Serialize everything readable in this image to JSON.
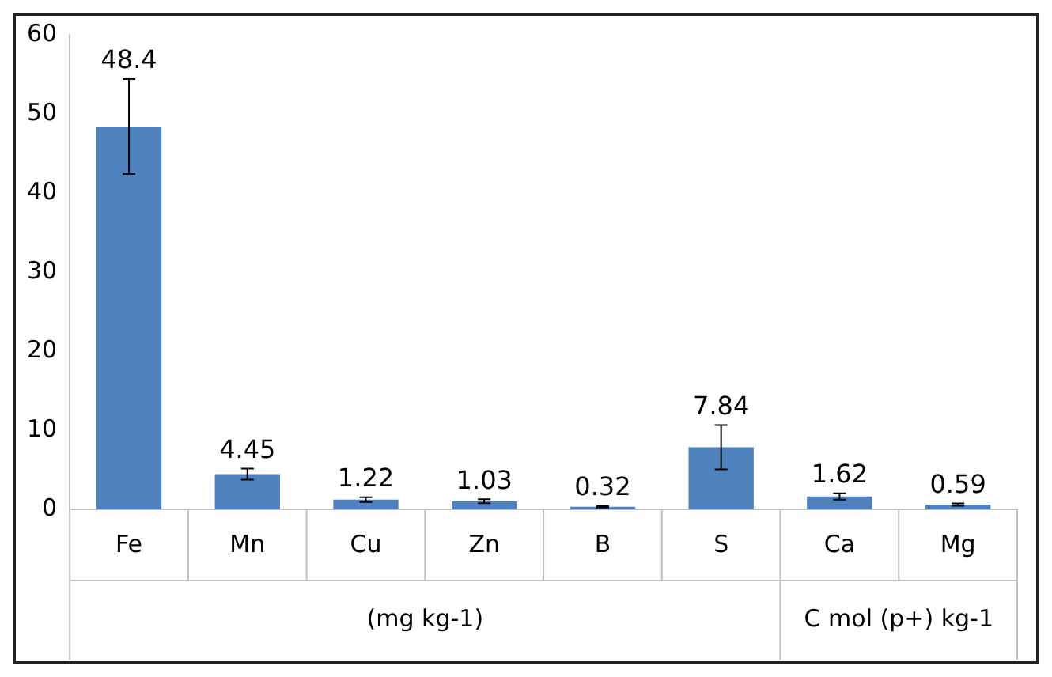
{
  "chart_data": {
    "type": "bar",
    "categories": [
      "Fe",
      "Mn",
      "Cu",
      "Zn",
      "B",
      "S",
      "Ca",
      "Mg"
    ],
    "values": [
      48.4,
      4.45,
      1.22,
      1.03,
      0.32,
      7.84,
      1.62,
      0.59
    ],
    "errors": [
      6,
      0.7,
      0.3,
      0.25,
      0.1,
      2.8,
      0.4,
      0.15
    ],
    "color": "#4f81bd",
    "data_labels": true,
    "ylim": [
      0,
      60
    ],
    "yticks": [
      0,
      10,
      20,
      30,
      40,
      50,
      60
    ],
    "grid": false,
    "legend": false,
    "annotations": [
      "(mg kg-1)",
      "C mol (p+) kg-1"
    ]
  }
}
